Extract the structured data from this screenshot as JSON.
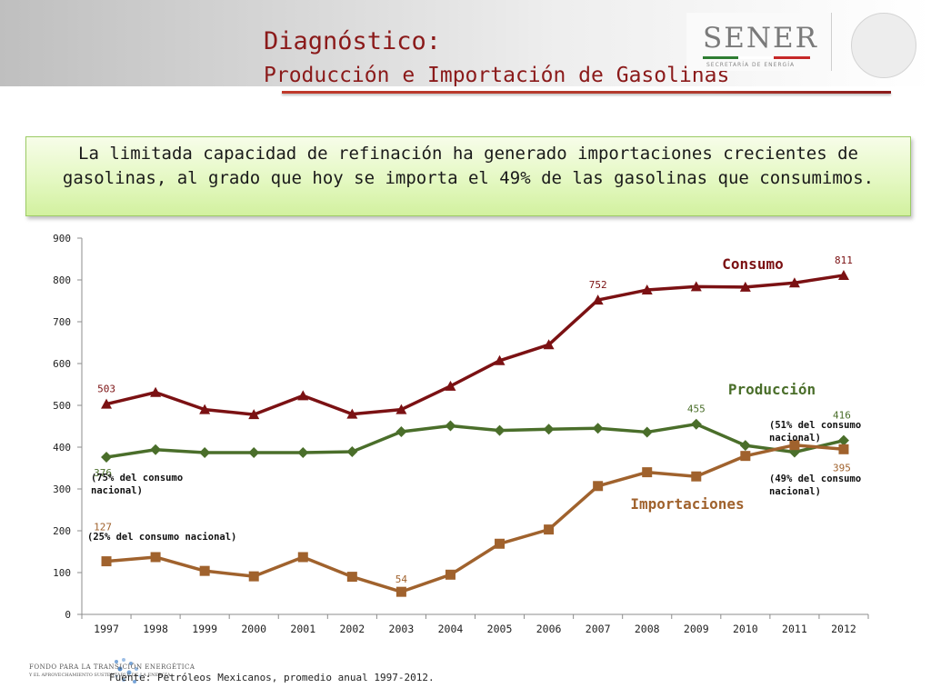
{
  "header": {
    "title": "Diagnóstico:",
    "subtitle": "Producción e Importación de Gasolinas",
    "logo_text": "SENER",
    "logo_tagline": "SECRETARÍA DE ENERGÍA"
  },
  "callout": {
    "text": "La limitada capacidad de refinación ha generado importaciones crecientes de gasolinas, al grado que hoy se importa el 49% de las gasolinas que consumimos."
  },
  "chart_data": {
    "type": "line",
    "categories": [
      "1997",
      "1998",
      "1999",
      "2000",
      "2001",
      "2002",
      "2003",
      "2004",
      "2005",
      "2006",
      "2007",
      "2008",
      "2009",
      "2010",
      "2011",
      "2012"
    ],
    "ylim": [
      0,
      900
    ],
    "yticks": [
      0,
      100,
      200,
      300,
      400,
      500,
      600,
      700,
      800,
      900
    ],
    "grid": false,
    "series": [
      {
        "name": "Consumo",
        "color": "#7b1113",
        "marker": "triangle",
        "values": [
          503,
          531,
          490,
          478,
          523,
          479,
          490,
          546,
          607,
          645,
          752,
          776,
          784,
          783,
          793,
          811
        ]
      },
      {
        "name": "Producción",
        "color": "#4a6e2a",
        "marker": "diamond",
        "values": [
          376,
          394,
          387,
          387,
          387,
          389,
          437,
          451,
          440,
          443,
          445,
          436,
          455,
          404,
          388,
          416
        ]
      },
      {
        "name": "Importaciones",
        "color": "#a0622d",
        "marker": "square",
        "values": [
          127,
          137,
          104,
          91,
          137,
          90,
          54,
          95,
          169,
          203,
          307,
          340,
          330,
          379,
          405,
          395
        ]
      }
    ],
    "data_labels": [
      {
        "series": "Consumo",
        "index": 0,
        "text": "503"
      },
      {
        "series": "Consumo",
        "index": 10,
        "text": "752"
      },
      {
        "series": "Consumo",
        "index": 15,
        "text": "811"
      },
      {
        "series": "Producción",
        "index": 0,
        "text": "376"
      },
      {
        "series": "Producción",
        "index": 12,
        "text": "455"
      },
      {
        "series": "Producción",
        "index": 15,
        "text": "416"
      },
      {
        "series": "Importaciones",
        "index": 0,
        "text": "127"
      },
      {
        "series": "Importaciones",
        "index": 6,
        "text": "54"
      },
      {
        "series": "Importaciones",
        "index": 15,
        "text": "395"
      }
    ],
    "annotations": {
      "prod_1997": [
        "(75% del consumo",
        "nacional)"
      ],
      "imp_1997": "(25% del consumo  nacional)",
      "prod_2012": [
        "(51% del consumo",
        "nacional)"
      ],
      "imp_2012": [
        "(49% del consumo",
        "nacional)"
      ]
    }
  },
  "footer": {
    "source": "Fuente: Petróleos Mexicanos, promedio anual 1997-2012.",
    "fund_logo_line1": "FONDO PARA LA TRANSICIÓN ENERGÉTICA",
    "fund_logo_line2": "Y EL APROVECHAMIENTO SUSTENTABLE DE LA ENERGÍA"
  }
}
